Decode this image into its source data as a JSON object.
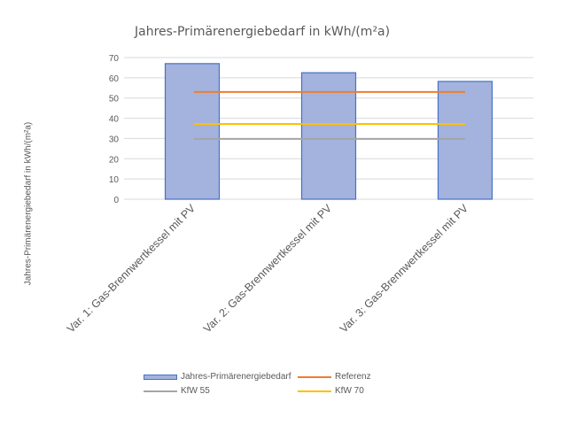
{
  "chart_data": {
    "type": "bar",
    "title": "Jahres-Primärenergiebedarf in kWh/(m²a)",
    "xlabel": "",
    "ylabel": "Jahres-Primärenergiebedarf in kWh/(m²a)",
    "ylim": [
      0,
      70
    ],
    "yticks": [
      0,
      10,
      20,
      30,
      40,
      50,
      60,
      70
    ],
    "grid": true,
    "legend_position": "bottom",
    "categories": [
      "Var. 1: Gas-Brennwertkessel mit PV",
      "Var. 2: Gas-Brennwertkessel mit PV",
      "Var. 3: Gas-Brennwertkessel mit PV"
    ],
    "series": [
      {
        "name": "Jahres-Primärenergiebedarf",
        "type": "bar",
        "color": "#a3b3de",
        "edge": "#4472c4",
        "values": [
          67,
          62.5,
          58.2
        ]
      },
      {
        "name": "Referenz",
        "type": "line",
        "color": "#ed7d31",
        "values": [
          53,
          53,
          53
        ]
      },
      {
        "name": "KfW 55",
        "type": "line",
        "color": "#a5a5a5",
        "values": [
          29.8,
          29.8,
          29.8
        ]
      },
      {
        "name": "KfW 70",
        "type": "line",
        "color": "#ffc000",
        "values": [
          37.2,
          37.2,
          37.2
        ]
      }
    ]
  },
  "legend": {
    "items": [
      {
        "label": "Jahres-Primärenergiebedarf",
        "color": "#a3b3de"
      },
      {
        "label": "Referenz",
        "color": "#ed7d31"
      },
      {
        "label": "KfW 55",
        "color": "#a5a5a5"
      },
      {
        "label": "KfW 70",
        "color": "#ffc000"
      }
    ]
  }
}
